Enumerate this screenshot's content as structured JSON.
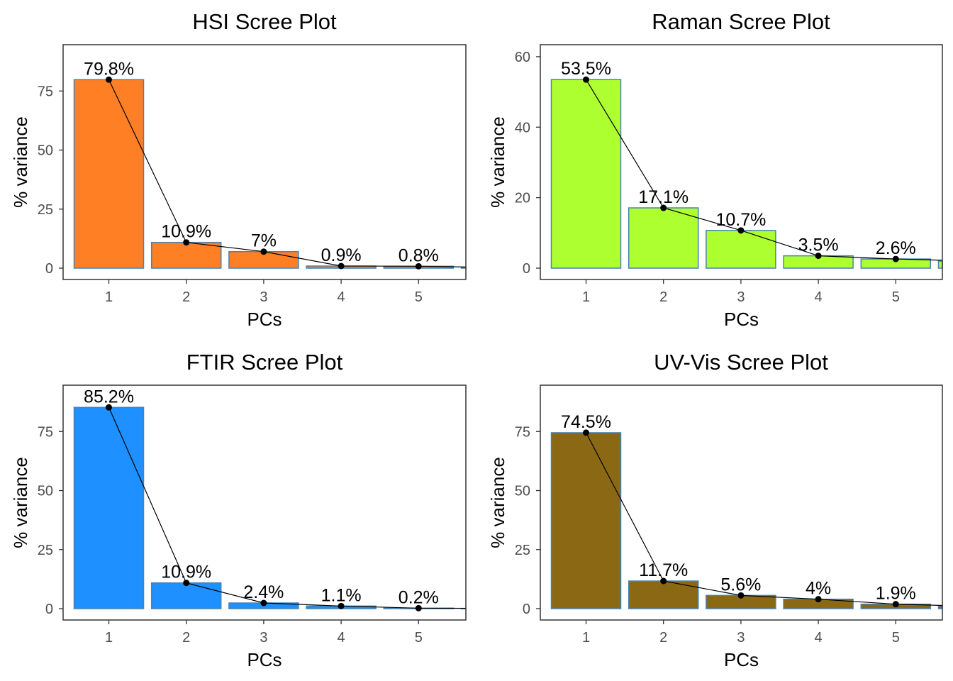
{
  "chart_data": [
    {
      "type": "bar",
      "title": "HSI Scree Plot",
      "xlabel": "PCs",
      "ylabel": "% variance",
      "categories": [
        "1",
        "2",
        "3",
        "4",
        "5"
      ],
      "values": [
        79.8,
        10.9,
        7.0,
        0.9,
        0.8
      ],
      "labels": [
        "79.8%",
        "10.9%",
        "7%",
        "0.9%",
        "0.8%"
      ],
      "overflow": {
        "value": 0.3,
        "next": 0.1
      },
      "ylim": [
        0,
        94
      ],
      "yticks": [
        0,
        25,
        50,
        75
      ],
      "bar_color": "#FF7F24",
      "border_color": "#4682B4",
      "line_color": "#000000"
    },
    {
      "type": "bar",
      "title": "Raman Scree Plot",
      "xlabel": "PCs",
      "ylabel": "% variance",
      "categories": [
        "1",
        "2",
        "3",
        "4",
        "5"
      ],
      "values": [
        53.5,
        17.1,
        10.7,
        3.5,
        2.6
      ],
      "labels": [
        "53.5%",
        "17.1%",
        "10.7%",
        "3.5%",
        "2.6%"
      ],
      "overflow": {
        "value": 2.0,
        "next": 1.6
      },
      "ylim": [
        0,
        63
      ],
      "yticks": [
        0,
        20,
        40,
        60
      ],
      "bar_color": "#ADFF2F",
      "border_color": "#4682B4",
      "line_color": "#000000"
    },
    {
      "type": "bar",
      "title": "FTIR Scree Plot",
      "xlabel": "PCs",
      "ylabel": "% variance",
      "categories": [
        "1",
        "2",
        "3",
        "4",
        "5"
      ],
      "values": [
        85.2,
        10.9,
        2.4,
        1.1,
        0.2
      ],
      "labels": [
        "85.2%",
        "10.9%",
        "2.4%",
        "1.1%",
        "0.2%"
      ],
      "overflow": {
        "value": 0.1,
        "next": 0.05
      },
      "ylim": [
        0,
        94
      ],
      "yticks": [
        0,
        25,
        50,
        75
      ],
      "bar_color": "#1E90FF",
      "border_color": "#4682B4",
      "line_color": "#000000"
    },
    {
      "type": "bar",
      "title": "UV-Vis Scree Plot",
      "xlabel": "PCs",
      "ylabel": "% variance",
      "categories": [
        "1",
        "2",
        "3",
        "4",
        "5"
      ],
      "values": [
        74.5,
        11.7,
        5.6,
        4.0,
        1.9
      ],
      "labels": [
        "74.5%",
        "11.7%",
        "5.6%",
        "4%",
        "1.9%"
      ],
      "overflow": {
        "value": 1.0,
        "next": 0.7
      },
      "ylim": [
        0,
        94
      ],
      "yticks": [
        0,
        25,
        50,
        75
      ],
      "bar_color": "#8B6914",
      "border_color": "#4682B4",
      "line_color": "#000000"
    }
  ]
}
